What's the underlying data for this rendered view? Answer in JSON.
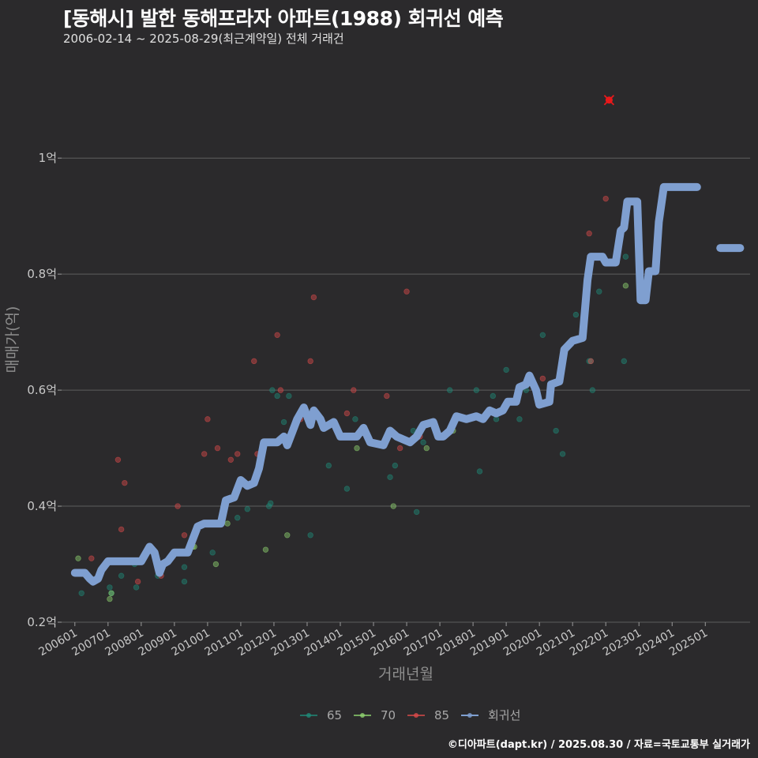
{
  "header": {
    "title": "[동해시] 발한 동해프라자 아파트(1988) 회귀선 예측",
    "subtitle": "2006-02-14 ~ 2025-08-29(최근계약일) 전체 거래건"
  },
  "caption": "©디아파트(dapt.kr) / 2025.08.30 / 자료=국토교통부 실거래가",
  "colors": {
    "background": "#2b2a2c",
    "grid": "#5e5e5e",
    "s65": "#1f8a78",
    "s70": "#8ed16f",
    "s85": "#d94a4a",
    "regression": "#7f9fd0",
    "outlier": "#e8191b"
  },
  "chart_data": {
    "type": "scatter",
    "xlabel": "거래년월",
    "ylabel": "매매가(억)",
    "xlim": [
      2005.6,
      2026.35
    ],
    "ylim": [
      0.2,
      1.15
    ],
    "y_ticks": [
      {
        "value": 0.2,
        "label": "0.2억"
      },
      {
        "value": 0.4,
        "label": "0.4억"
      },
      {
        "value": 0.6,
        "label": "0.6억"
      },
      {
        "value": 0.8,
        "label": "0.8억"
      },
      {
        "value": 1.0,
        "label": "1억"
      }
    ],
    "x_ticks": [
      "200601",
      "200701",
      "200801",
      "200901",
      "201001",
      "201101",
      "201201",
      "201301",
      "201401",
      "201501",
      "201601",
      "201701",
      "201801",
      "201901",
      "202001",
      "202101",
      "202201",
      "202301",
      "202401",
      "202501"
    ],
    "legend_position": "bottom",
    "legend": [
      {
        "key": "s65",
        "label": "65"
      },
      {
        "key": "s70",
        "label": "70"
      },
      {
        "key": "s85",
        "label": "85"
      },
      {
        "key": "regression",
        "label": "회귀선"
      }
    ],
    "series": [
      {
        "name": "65",
        "key": "s65",
        "points": [
          [
            2006.2,
            0.25
          ],
          [
            2007.05,
            0.26
          ],
          [
            2007.1,
            0.25
          ],
          [
            2007.4,
            0.28
          ],
          [
            2007.8,
            0.3
          ],
          [
            2007.85,
            0.26
          ],
          [
            2008.5,
            0.28
          ],
          [
            2009.3,
            0.27
          ],
          [
            2009.3,
            0.295
          ],
          [
            2009.5,
            0.33
          ],
          [
            2010.15,
            0.32
          ],
          [
            2010.2,
            0.37
          ],
          [
            2010.9,
            0.38
          ],
          [
            2011.2,
            0.395
          ],
          [
            2011.6,
            0.49
          ],
          [
            2011.85,
            0.4
          ],
          [
            2011.9,
            0.405
          ],
          [
            2011.95,
            0.6
          ],
          [
            2012.1,
            0.59
          ],
          [
            2012.3,
            0.545
          ],
          [
            2012.45,
            0.59
          ],
          [
            2013.1,
            0.35
          ],
          [
            2013.65,
            0.47
          ],
          [
            2014.2,
            0.43
          ],
          [
            2014.45,
            0.55
          ],
          [
            2015.5,
            0.45
          ],
          [
            2015.65,
            0.47
          ],
          [
            2016.2,
            0.53
          ],
          [
            2016.3,
            0.39
          ],
          [
            2016.5,
            0.51
          ],
          [
            2017.3,
            0.6
          ],
          [
            2018.1,
            0.6
          ],
          [
            2018.2,
            0.46
          ],
          [
            2018.6,
            0.59
          ],
          [
            2018.7,
            0.55
          ],
          [
            2019.0,
            0.635
          ],
          [
            2019.4,
            0.55
          ],
          [
            2019.6,
            0.6
          ],
          [
            2020.1,
            0.695
          ],
          [
            2020.5,
            0.53
          ],
          [
            2020.7,
            0.49
          ],
          [
            2021.1,
            0.73
          ],
          [
            2021.5,
            0.65
          ],
          [
            2021.55,
            0.65
          ],
          [
            2021.6,
            0.6
          ],
          [
            2021.8,
            0.77
          ],
          [
            2022.6,
            0.83
          ],
          [
            2022.55,
            0.65
          ]
        ]
      },
      {
        "name": "70",
        "key": "s70",
        "points": [
          [
            2006.1,
            0.31
          ],
          [
            2007.05,
            0.24
          ],
          [
            2007.1,
            0.25
          ],
          [
            2009.55,
            0.33
          ],
          [
            2009.6,
            0.33
          ],
          [
            2010.25,
            0.3
          ],
          [
            2010.6,
            0.37
          ],
          [
            2011.75,
            0.325
          ],
          [
            2012.4,
            0.35
          ],
          [
            2014.5,
            0.5
          ],
          [
            2015.6,
            0.4
          ],
          [
            2016.6,
            0.5
          ],
          [
            2017.4,
            0.53
          ],
          [
            2022.6,
            0.78
          ]
        ]
      },
      {
        "name": "85",
        "key": "s85",
        "points": [
          [
            2006.5,
            0.31
          ],
          [
            2007.3,
            0.48
          ],
          [
            2007.4,
            0.36
          ],
          [
            2007.5,
            0.44
          ],
          [
            2007.9,
            0.27
          ],
          [
            2008.6,
            0.28
          ],
          [
            2009.1,
            0.4
          ],
          [
            2009.3,
            0.35
          ],
          [
            2009.9,
            0.49
          ],
          [
            2010.0,
            0.55
          ],
          [
            2010.3,
            0.5
          ],
          [
            2010.7,
            0.48
          ],
          [
            2010.9,
            0.49
          ],
          [
            2011.4,
            0.65
          ],
          [
            2011.5,
            0.49
          ],
          [
            2012.1,
            0.695
          ],
          [
            2012.2,
            0.6
          ],
          [
            2012.8,
            0.55
          ],
          [
            2013.1,
            0.65
          ],
          [
            2013.2,
            0.76
          ],
          [
            2014.2,
            0.56
          ],
          [
            2014.4,
            0.6
          ],
          [
            2015.4,
            0.59
          ],
          [
            2015.8,
            0.5
          ],
          [
            2016.0,
            0.77
          ],
          [
            2016.4,
            0.52
          ],
          [
            2020.1,
            0.62
          ],
          [
            2021.5,
            0.87
          ],
          [
            2021.55,
            0.65
          ],
          [
            2022.0,
            0.93
          ]
        ]
      }
    ],
    "outlier": [
      2022.1,
      1.1
    ],
    "regression": [
      [
        2006.0,
        0.285
      ],
      [
        2006.3,
        0.285
      ],
      [
        2006.45,
        0.275
      ],
      [
        2006.55,
        0.27
      ],
      [
        2006.7,
        0.275
      ],
      [
        2006.8,
        0.29
      ],
      [
        2007.0,
        0.305
      ],
      [
        2007.4,
        0.305
      ],
      [
        2008.0,
        0.305
      ],
      [
        2008.25,
        0.33
      ],
      [
        2008.4,
        0.32
      ],
      [
        2008.55,
        0.285
      ],
      [
        2008.65,
        0.3
      ],
      [
        2008.8,
        0.305
      ],
      [
        2009.0,
        0.32
      ],
      [
        2009.4,
        0.32
      ],
      [
        2009.7,
        0.365
      ],
      [
        2009.9,
        0.37
      ],
      [
        2010.4,
        0.37
      ],
      [
        2010.55,
        0.41
      ],
      [
        2010.8,
        0.415
      ],
      [
        2011.0,
        0.445
      ],
      [
        2011.2,
        0.435
      ],
      [
        2011.4,
        0.44
      ],
      [
        2011.55,
        0.465
      ],
      [
        2011.7,
        0.51
      ],
      [
        2011.9,
        0.51
      ],
      [
        2012.1,
        0.51
      ],
      [
        2012.3,
        0.52
      ],
      [
        2012.4,
        0.505
      ],
      [
        2012.5,
        0.52
      ],
      [
        2012.7,
        0.55
      ],
      [
        2012.9,
        0.57
      ],
      [
        2013.1,
        0.54
      ],
      [
        2013.2,
        0.565
      ],
      [
        2013.4,
        0.55
      ],
      [
        2013.5,
        0.535
      ],
      [
        2013.8,
        0.545
      ],
      [
        2014.0,
        0.52
      ],
      [
        2014.5,
        0.52
      ],
      [
        2014.7,
        0.535
      ],
      [
        2014.9,
        0.51
      ],
      [
        2015.3,
        0.505
      ],
      [
        2015.5,
        0.53
      ],
      [
        2015.7,
        0.52
      ],
      [
        2015.9,
        0.515
      ],
      [
        2016.1,
        0.51
      ],
      [
        2016.3,
        0.52
      ],
      [
        2016.5,
        0.54
      ],
      [
        2016.8,
        0.545
      ],
      [
        2016.95,
        0.52
      ],
      [
        2017.1,
        0.52
      ],
      [
        2017.3,
        0.53
      ],
      [
        2017.5,
        0.555
      ],
      [
        2017.8,
        0.55
      ],
      [
        2018.1,
        0.555
      ],
      [
        2018.3,
        0.55
      ],
      [
        2018.5,
        0.565
      ],
      [
        2018.7,
        0.56
      ],
      [
        2018.9,
        0.565
      ],
      [
        2019.05,
        0.58
      ],
      [
        2019.3,
        0.58
      ],
      [
        2019.4,
        0.605
      ],
      [
        2019.6,
        0.61
      ],
      [
        2019.7,
        0.625
      ],
      [
        2019.9,
        0.6
      ],
      [
        2020.0,
        0.575
      ],
      [
        2020.3,
        0.58
      ],
      [
        2020.35,
        0.61
      ],
      [
        2020.6,
        0.615
      ],
      [
        2020.75,
        0.67
      ],
      [
        2021.0,
        0.685
      ],
      [
        2021.3,
        0.69
      ],
      [
        2021.45,
        0.79
      ],
      [
        2021.55,
        0.83
      ],
      [
        2021.9,
        0.83
      ],
      [
        2022.0,
        0.82
      ],
      [
        2022.3,
        0.82
      ],
      [
        2022.45,
        0.875
      ],
      [
        2022.55,
        0.88
      ],
      [
        2022.65,
        0.925
      ],
      [
        2022.95,
        0.925
      ],
      [
        2023.05,
        0.755
      ],
      [
        2023.2,
        0.755
      ],
      [
        2023.3,
        0.805
      ],
      [
        2023.5,
        0.805
      ],
      [
        2023.6,
        0.89
      ],
      [
        2023.75,
        0.95
      ],
      [
        2024.75,
        0.95
      ]
    ],
    "regression_tail": [
      [
        2025.45,
        0.845
      ],
      [
        2026.05,
        0.845
      ]
    ]
  }
}
